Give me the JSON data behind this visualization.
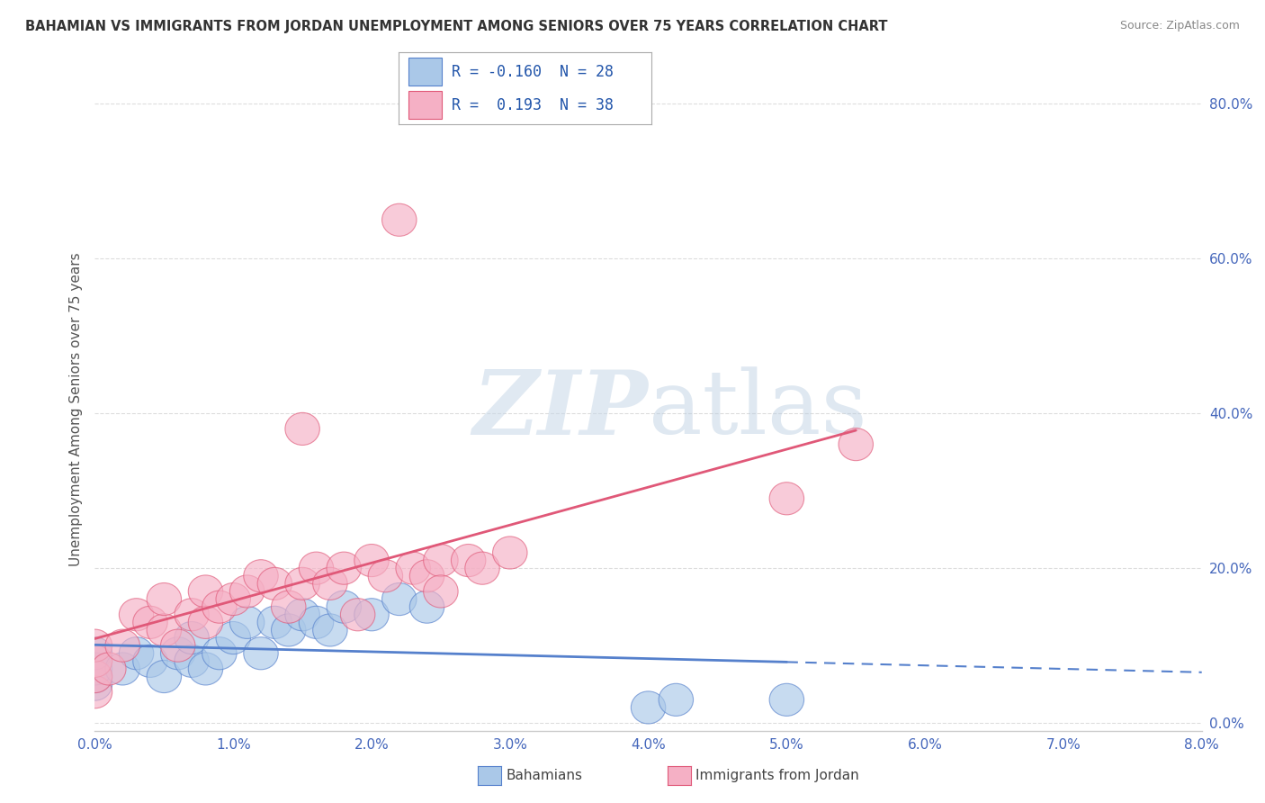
{
  "title": "BAHAMIAN VS IMMIGRANTS FROM JORDAN UNEMPLOYMENT AMONG SENIORS OVER 75 YEARS CORRELATION CHART",
  "source": "Source: ZipAtlas.com",
  "ylabel": "Unemployment Among Seniors over 75 years",
  "xlim": [
    0.0,
    0.08
  ],
  "ylim": [
    -0.01,
    0.82
  ],
  "xticks": [
    0.0,
    0.01,
    0.02,
    0.03,
    0.04,
    0.05,
    0.06,
    0.07,
    0.08
  ],
  "xticklabels": [
    "0.0%",
    "1.0%",
    "2.0%",
    "3.0%",
    "4.0%",
    "5.0%",
    "6.0%",
    "7.0%",
    "8.0%"
  ],
  "yticks_right": [
    0.0,
    0.2,
    0.4,
    0.6,
    0.8
  ],
  "yticks_right_labels": [
    "0.0%",
    "20.0%",
    "40.0%",
    "60.0%",
    "80.0%"
  ],
  "bahamians_color": "#aac8e8",
  "jordan_color": "#f5b0c5",
  "bahamians_line_color": "#5580cc",
  "jordan_line_color": "#e05878",
  "R_bahamian": -0.16,
  "N_bahamian": 28,
  "R_jordan": 0.193,
  "N_jordan": 38,
  "watermark_zip": "ZIP",
  "watermark_atlas": "atlas",
  "bahamians_x": [
    0.0,
    0.0,
    0.0,
    0.0,
    0.002,
    0.003,
    0.004,
    0.005,
    0.006,
    0.007,
    0.007,
    0.008,
    0.009,
    0.01,
    0.011,
    0.012,
    0.013,
    0.014,
    0.015,
    0.016,
    0.017,
    0.018,
    0.02,
    0.022,
    0.024,
    0.04,
    0.042,
    0.05
  ],
  "bahamians_y": [
    0.05,
    0.06,
    0.07,
    0.09,
    0.07,
    0.09,
    0.08,
    0.06,
    0.09,
    0.08,
    0.11,
    0.07,
    0.09,
    0.11,
    0.13,
    0.09,
    0.13,
    0.12,
    0.14,
    0.13,
    0.12,
    0.15,
    0.14,
    0.16,
    0.15,
    0.02,
    0.03,
    0.03
  ],
  "jordan_x": [
    0.0,
    0.0,
    0.0,
    0.0,
    0.001,
    0.002,
    0.003,
    0.004,
    0.005,
    0.005,
    0.006,
    0.007,
    0.008,
    0.008,
    0.009,
    0.01,
    0.011,
    0.012,
    0.013,
    0.014,
    0.015,
    0.015,
    0.016,
    0.017,
    0.018,
    0.019,
    0.02,
    0.021,
    0.022,
    0.023,
    0.024,
    0.025,
    0.025,
    0.027,
    0.028,
    0.03,
    0.05,
    0.055
  ],
  "jordan_y": [
    0.04,
    0.06,
    0.08,
    0.1,
    0.07,
    0.1,
    0.14,
    0.13,
    0.12,
    0.16,
    0.1,
    0.14,
    0.17,
    0.13,
    0.15,
    0.16,
    0.17,
    0.19,
    0.18,
    0.15,
    0.18,
    0.38,
    0.2,
    0.18,
    0.2,
    0.14,
    0.21,
    0.19,
    0.65,
    0.2,
    0.19,
    0.21,
    0.17,
    0.21,
    0.2,
    0.22,
    0.29,
    0.36
  ],
  "background_color": "#ffffff",
  "grid_color": "#dddddd"
}
